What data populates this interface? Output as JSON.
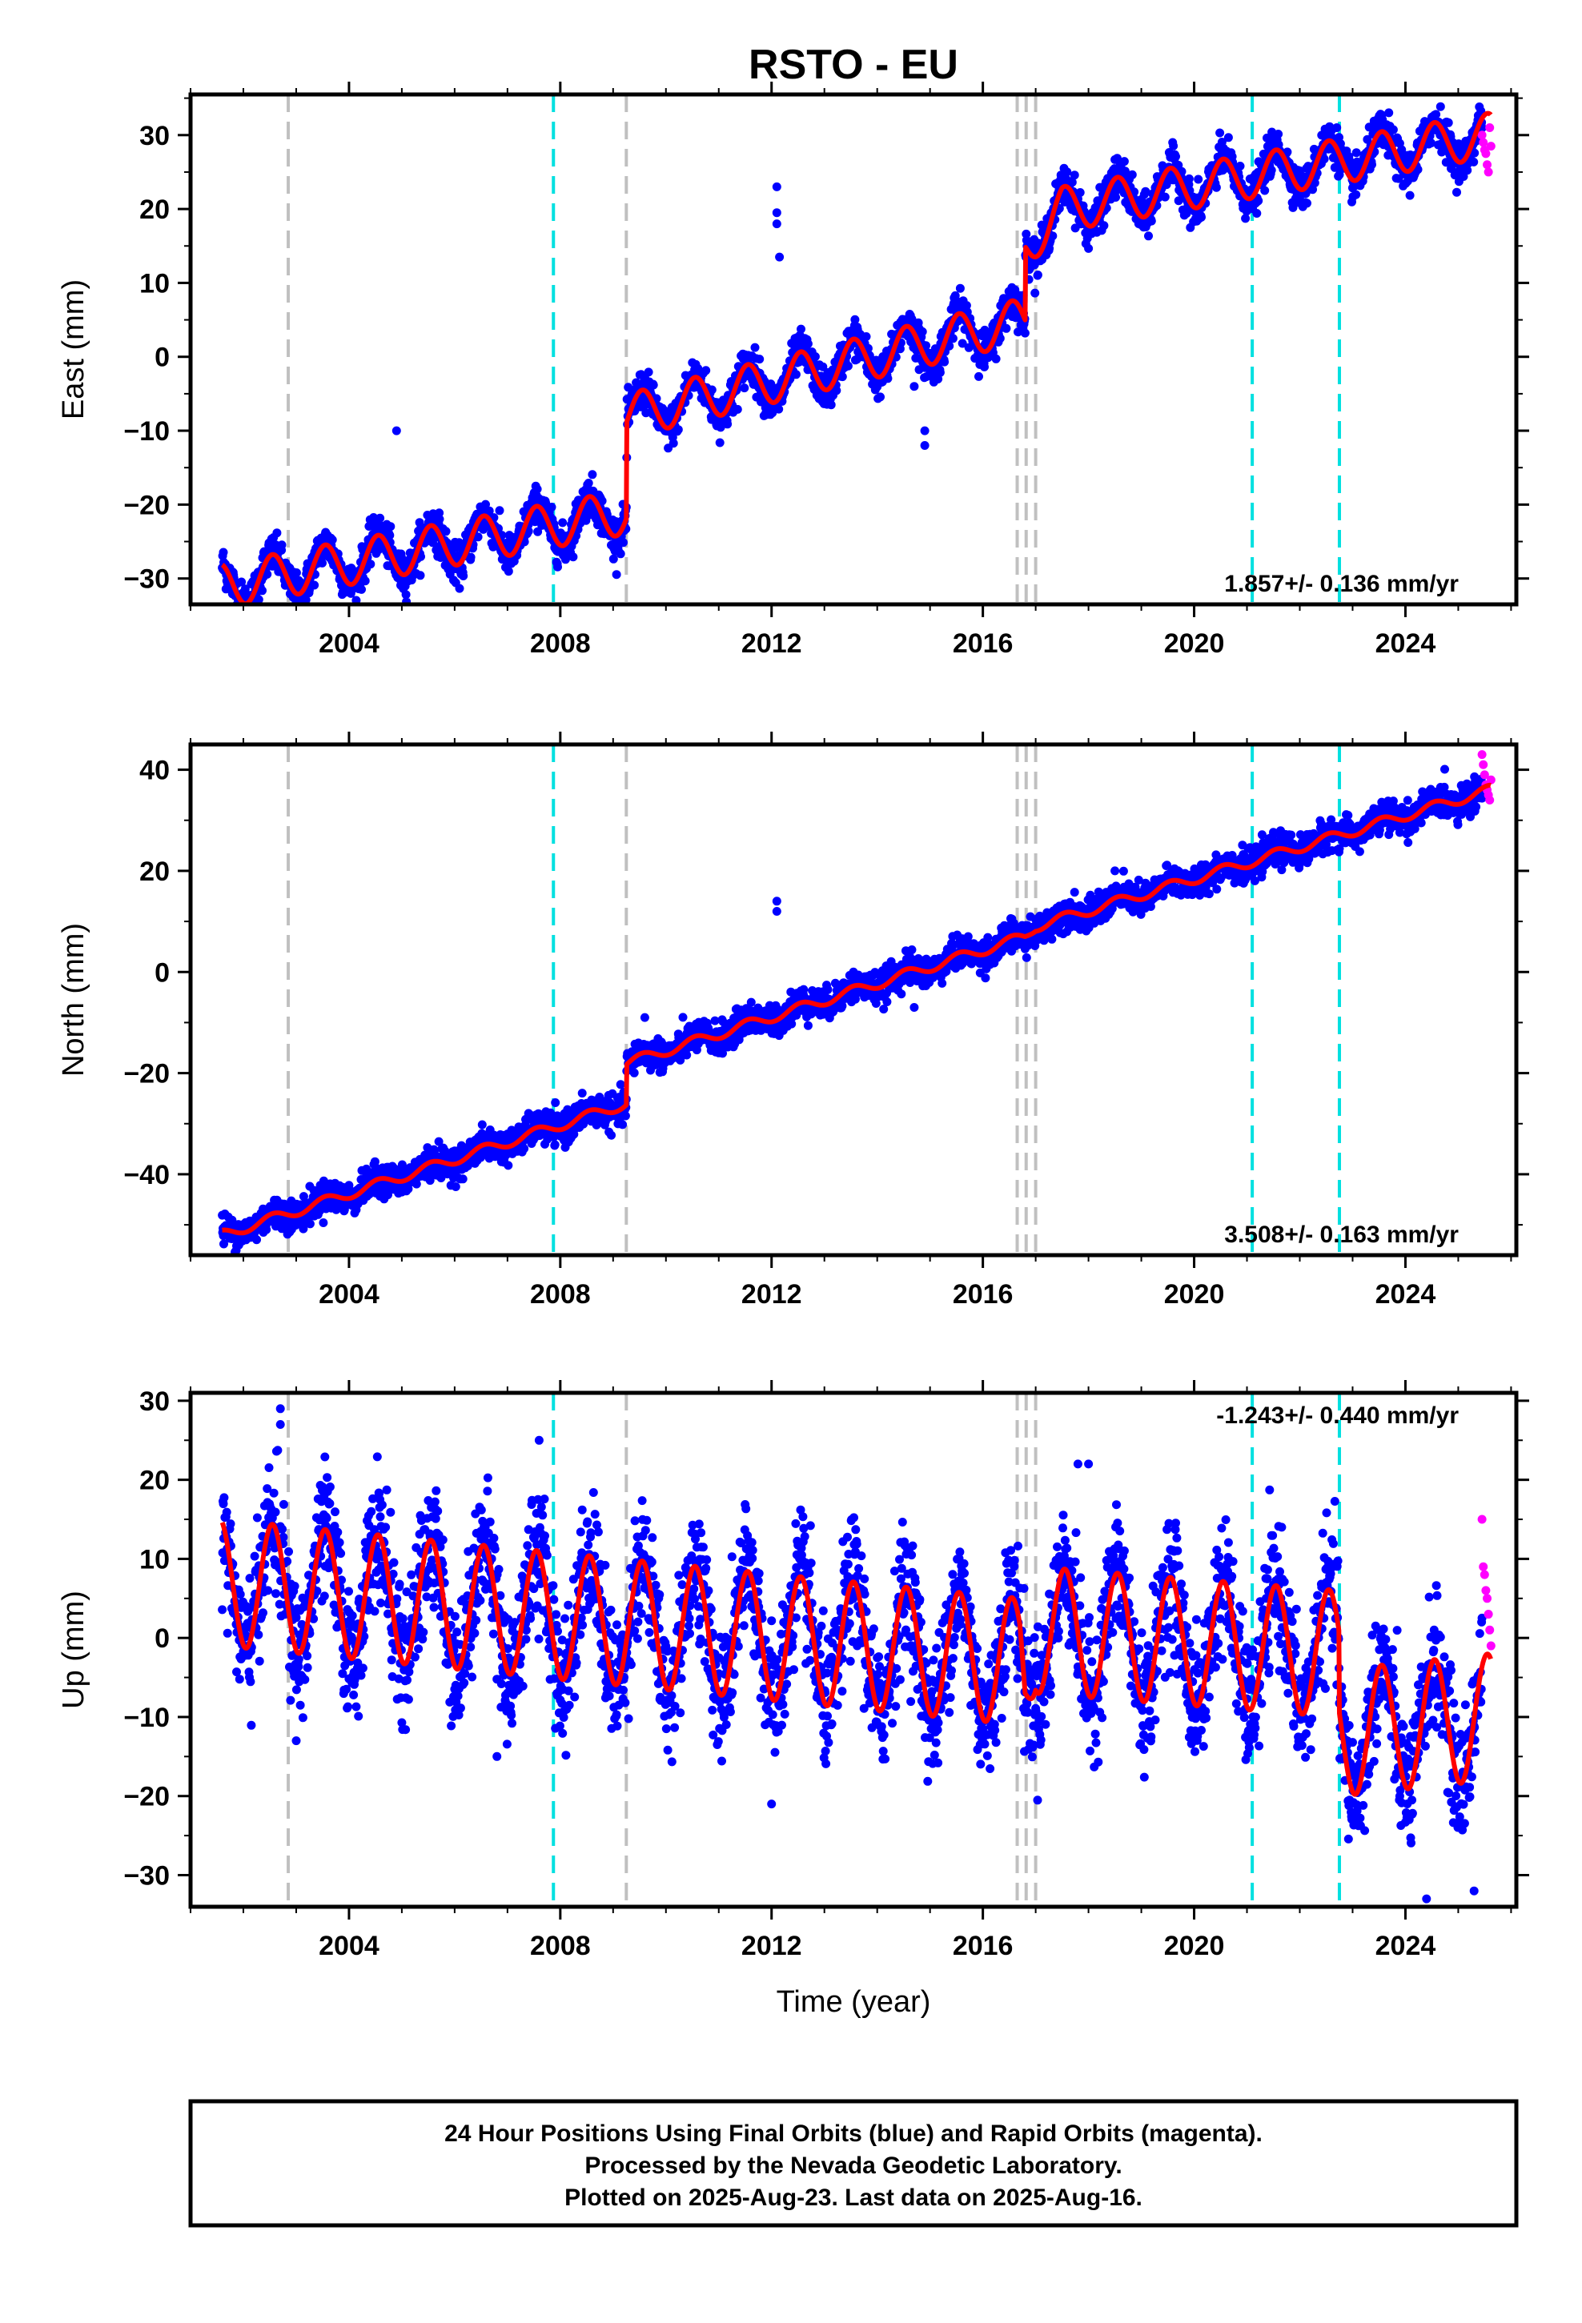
{
  "colors": {
    "final": "#0000ff",
    "rapid": "#ff00ff",
    "model": "#ff0000",
    "break_gray": "#c0c0c0",
    "break_cyan": "#00e0e0"
  },
  "footer": {
    "line1": "24 Hour Positions Using Final Orbits (blue) and Rapid Orbits (magenta).",
    "line2": "Processed by the Nevada Geodetic Laboratory.",
    "line3": "Plotted on 2025-Aug-23. Last data on 2025-Aug-16."
  },
  "chart_data": {
    "type": "scatter",
    "title": "RSTO - EU",
    "xlabel": "Time (year)",
    "xlim": [
      2001.0,
      2026.1
    ],
    "xticks": [
      2004,
      2008,
      2012,
      2016,
      2020,
      2024
    ],
    "breaks_gray": [
      2002.85,
      2009.25,
      2016.65,
      2016.82,
      2017.0
    ],
    "breaks_cyan": [
      2007.87,
      2021.1,
      2022.75
    ],
    "data_start": 2001.6,
    "data_end": 2025.62,
    "rapid_start": 2025.45,
    "panels": [
      {
        "name": "east",
        "ylabel": "East (mm)",
        "ylim": [
          -33.5,
          35.5
        ],
        "yticks": [
          -30,
          -20,
          -10,
          0,
          10,
          20,
          30
        ],
        "rate_text": "1.857+/- 0.136 mm/yr",
        "rate_position": "bottom-right",
        "trend": [
          [
            2001.6,
            -31
          ],
          [
            2009.25,
            -21
          ],
          [
            2009.26,
            -8
          ],
          [
            2016.8,
            5
          ],
          [
            2016.81,
            15
          ],
          [
            2017.5,
            20
          ],
          [
            2025.6,
            30
          ]
        ],
        "seasonal_amplitude": 3.0,
        "scatter_sd": 1.3,
        "outliers": [
          [
            2012.1,
            23
          ],
          [
            2012.1,
            19.5
          ],
          [
            2012.1,
            18
          ],
          [
            2012.15,
            13.5
          ],
          [
            2014.9,
            -10
          ],
          [
            2014.9,
            -12
          ],
          [
            2004.9,
            -10
          ],
          [
            2014.7,
            -4
          ]
        ]
      },
      {
        "name": "north",
        "ylabel": "North (mm)",
        "ylim": [
          -56,
          45
        ],
        "yticks": [
          -40,
          -20,
          0,
          20,
          40
        ],
        "rate_text": "3.508+/- 0.163 mm/yr",
        "rate_position": "bottom-right",
        "trend": [
          [
            2001.6,
            -52
          ],
          [
            2009.25,
            -26
          ],
          [
            2009.26,
            -18
          ],
          [
            2016.8,
            7
          ],
          [
            2017.0,
            9
          ],
          [
            2025.6,
            36
          ]
        ],
        "seasonal_amplitude": 1.0,
        "scatter_sd": 1.5,
        "outliers": [
          [
            2012.1,
            14
          ],
          [
            2012.1,
            12
          ],
          [
            2014.7,
            -7
          ],
          [
            2009.6,
            -9
          ],
          [
            2018.5,
            20
          ]
        ]
      },
      {
        "name": "up",
        "ylabel": "Up (mm)",
        "ylim": [
          -34,
          31
        ],
        "yticks": [
          -30,
          -20,
          -10,
          0,
          10,
          20,
          30
        ],
        "rate_text": "-1.243+/- 0.440 mm/yr",
        "rate_position": "top-right",
        "trend": [
          [
            2001.6,
            7
          ],
          [
            2016.7,
            -3
          ],
          [
            2016.8,
            -7
          ],
          [
            2017.0,
            1
          ],
          [
            2022.74,
            -2
          ],
          [
            2022.75,
            -12
          ],
          [
            2025.6,
            -10
          ]
        ],
        "seasonal_amplitude": 8.0,
        "scatter_sd": 4.0,
        "outliers": [
          [
            2002.7,
            29
          ],
          [
            2002.7,
            27
          ],
          [
            2007.6,
            25
          ],
          [
            2017.8,
            22
          ],
          [
            2018.0,
            22
          ],
          [
            2012.0,
            -21
          ],
          [
            2024.4,
            -33
          ],
          [
            2025.3,
            -32
          ],
          [
            2003.0,
            -13
          ],
          [
            2006.8,
            -15
          ]
        ]
      }
    ],
    "rapid_points": {
      "east": [
        30,
        29,
        28,
        27.5,
        26,
        25,
        31,
        28.5
      ],
      "north": [
        43,
        41,
        39,
        37,
        36,
        35,
        34,
        38
      ],
      "up": [
        15,
        9,
        8,
        6,
        5,
        3,
        1,
        -1
      ]
    }
  }
}
